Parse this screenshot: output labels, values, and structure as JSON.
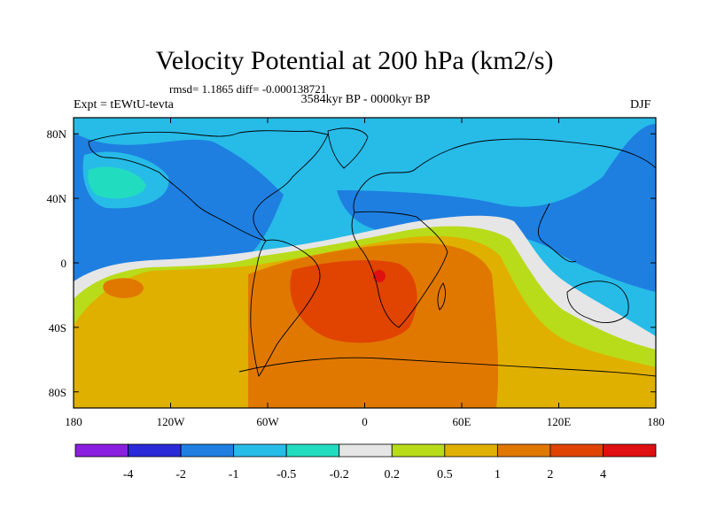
{
  "chart_data": {
    "type": "heatmap",
    "title": "Velocity Potential at 200 hPa (km2/s)",
    "stats_line": "rmsd= 1.1865 diff= -0.000138721",
    "left_label": "Expt = tEWtU-tevta",
    "center_label": "3584kyr BP - 0000kyr BP",
    "right_label": "DJF",
    "projection": "cylindrical equidistant",
    "xlim": [
      -180,
      180
    ],
    "ylim": [
      -90,
      90
    ],
    "x_ticks": [
      {
        "value": -180,
        "label": "180"
      },
      {
        "value": -120,
        "label": "120W"
      },
      {
        "value": -60,
        "label": "60W"
      },
      {
        "value": 0,
        "label": "0"
      },
      {
        "value": 60,
        "label": "60E"
      },
      {
        "value": 120,
        "label": "120E"
      },
      {
        "value": 180,
        "label": "180"
      }
    ],
    "y_ticks": [
      {
        "value": 80,
        "label": "80N"
      },
      {
        "value": 40,
        "label": "40N"
      },
      {
        "value": 0,
        "label": "0"
      },
      {
        "value": -40,
        "label": "40S"
      },
      {
        "value": -80,
        "label": "80S"
      }
    ],
    "colorbar": {
      "position": "bottom",
      "levels": [
        -4,
        -2,
        -1,
        -0.5,
        -0.2,
        0.2,
        0.5,
        1,
        2,
        4
      ],
      "level_labels": [
        "-4",
        "-2",
        "-1",
        "-0.5",
        "-0.2",
        "0.2",
        "0.5",
        "1",
        "2",
        "4"
      ],
      "colors": [
        "#8a1fe0",
        "#2a2ad8",
        "#1e7fe0",
        "#27bbe8",
        "#22dcc0",
        "#e6e6e6",
        "#b8dc1a",
        "#e0b000",
        "#e07800",
        "#e04400",
        "#e01010"
      ]
    },
    "features": {
      "negative_center": "northern hemisphere mid/high latitudes, strongest over North America and the Asian Pacific coast (about -1 to -2)",
      "positive_center": "southern Africa / South Atlantic, peak about 2 to 4",
      "zero_line": "arcs from the tropical East Pacific across the Atlantic into the Indian Ocean and down toward Australia"
    }
  }
}
